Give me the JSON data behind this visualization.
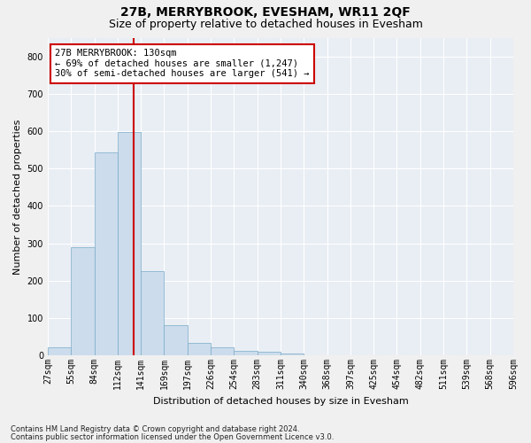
{
  "title": "27B, MERRYBROOK, EVESHAM, WR11 2QF",
  "subtitle": "Size of property relative to detached houses in Evesham",
  "xlabel": "Distribution of detached houses by size in Evesham",
  "ylabel": "Number of detached properties",
  "footnote1": "Contains HM Land Registry data © Crown copyright and database right 2024.",
  "footnote2": "Contains public sector information licensed under the Open Government Licence v3.0.",
  "annotation_line1": "27B MERRYBROOK: 130sqm",
  "annotation_line2": "← 69% of detached houses are smaller (1,247)",
  "annotation_line3": "30% of semi-detached houses are larger (541) →",
  "bar_color": "#ccdcec",
  "bar_edge_color": "#7aaac8",
  "bar_heights": [
    22,
    290,
    543,
    597,
    225,
    80,
    33,
    22,
    11,
    10,
    5,
    0,
    0,
    0,
    0,
    0,
    0,
    0,
    0,
    0
  ],
  "bin_labels": [
    "27sqm",
    "55sqm",
    "84sqm",
    "112sqm",
    "141sqm",
    "169sqm",
    "197sqm",
    "226sqm",
    "254sqm",
    "283sqm",
    "311sqm",
    "340sqm",
    "368sqm",
    "397sqm",
    "425sqm",
    "454sqm",
    "482sqm",
    "511sqm",
    "539sqm",
    "568sqm",
    "596sqm"
  ],
  "ylim": [
    0,
    850
  ],
  "yticks": [
    0,
    100,
    200,
    300,
    400,
    500,
    600,
    700,
    800
  ],
  "vline_color": "#cc0000",
  "annotation_box_color": "#cc0000",
  "background_color": "#e8eef4",
  "grid_color": "#ffffff",
  "fig_bg_color": "#f0f0f0",
  "title_fontsize": 10,
  "subtitle_fontsize": 9,
  "axis_label_fontsize": 8,
  "tick_fontsize": 7,
  "annotation_fontsize": 7.5,
  "footnote_fontsize": 6
}
